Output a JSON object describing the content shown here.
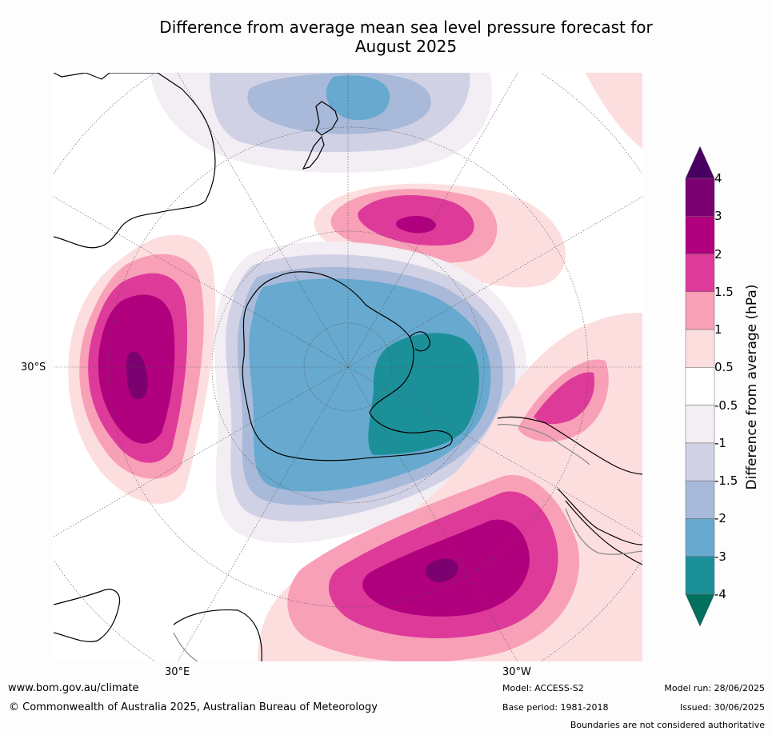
{
  "title_line1": "Difference from average mean sea level pressure forecast for",
  "title_line2": "August 2025",
  "map": {
    "latitude_label": "30°S",
    "longitude_labels": [
      "30°E",
      "30°W"
    ]
  },
  "colorbar": {
    "title": "Difference from average (hPa)",
    "ticks": [
      "4",
      "3",
      "2",
      "1.5",
      "1",
      "0.5",
      "-0.5",
      "-1",
      "-1.5",
      "-2",
      "-3",
      "-4"
    ],
    "colors": [
      "#4a0063",
      "#7b0070",
      "#b0007d",
      "#de3a9a",
      "#f8a0b8",
      "#fddede",
      "#ffffff",
      "#f3edf4",
      "#d1d1e5",
      "#a8b9d9",
      "#67a9cf",
      "#1c9099",
      "#02705e"
    ]
  },
  "footer": {
    "url": "www.bom.gov.au/climate",
    "copyright": "© Commonwealth of Australia 2025, Australian Bureau of Meteorology",
    "model": "Model: ACCESS-S2",
    "base_period": "Base period: 1981-2018",
    "model_run": "Model run: 28/06/2025",
    "issued": "Issued: 30/06/2025",
    "disclaimer": "Boundaries are not considered authoritative"
  }
}
